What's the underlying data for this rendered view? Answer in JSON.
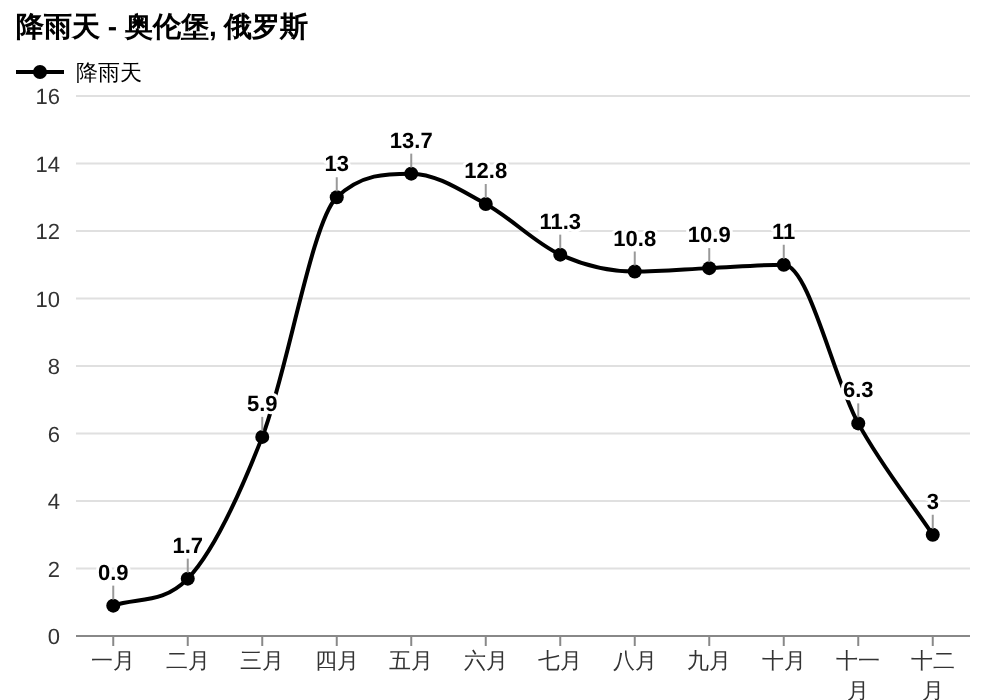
{
  "chart_data": {
    "type": "line",
    "title": "降雨天 - 奥伦堡, 俄罗斯",
    "categories": [
      "一月",
      "二月",
      "三月",
      "四月",
      "五月",
      "六月",
      "七月",
      "八月",
      "九月",
      "十月",
      "十一月",
      "十二月"
    ],
    "series": [
      {
        "name": "降雨天",
        "color": "#000000",
        "values": [
          0.9,
          1.7,
          5.9,
          13,
          13.7,
          12.8,
          11.3,
          10.8,
          10.9,
          11,
          6.3,
          3
        ]
      }
    ],
    "ylim": [
      0,
      16
    ],
    "yticks": [
      0,
      2,
      4,
      6,
      8,
      10,
      12,
      14,
      16
    ],
    "grid": "y",
    "legend": "top left",
    "marker": "circle",
    "line_style": "solid",
    "data_labels": true
  }
}
